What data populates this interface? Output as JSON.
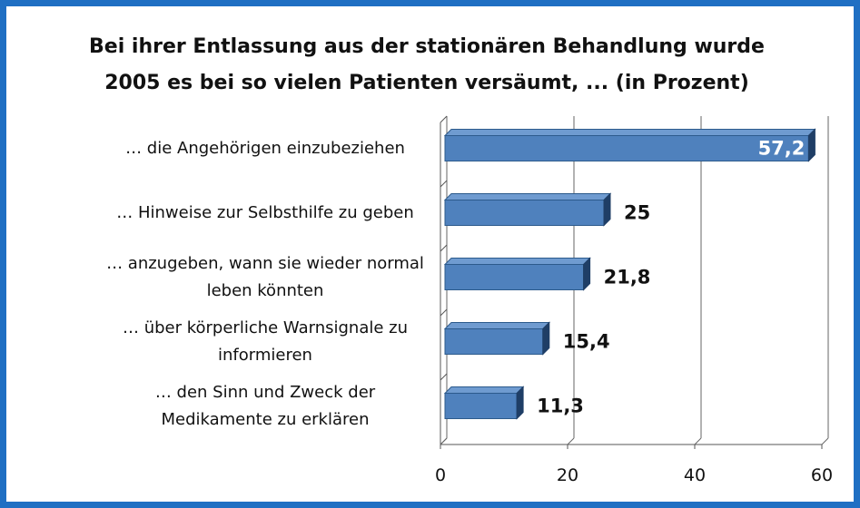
{
  "chart_data": {
    "type": "bar",
    "orientation": "horizontal",
    "title": "Bei ihrer Entlassung aus der stationären Behandlung wurde 2005 es bei so vielen Patienten versäumt, ... (in Prozent)",
    "categories": [
      "… die Angehörigen einzubeziehen",
      "… Hinweise zur Selbsthilfe zu geben",
      "… anzugeben, wann sie wieder normal leben könnten",
      "… über körperliche Warnsignale zu informieren",
      "… den Sinn und Zweck der Medikamente zu erklären"
    ],
    "values": [
      57.2,
      25,
      21.8,
      15.4,
      11.3
    ],
    "value_labels": [
      "57,2",
      "25",
      "21,8",
      "15,4",
      "11,3"
    ],
    "color": "#4f81bd",
    "xlim": [
      0,
      60
    ],
    "xticks": [
      0,
      20,
      40,
      60
    ],
    "grid": true
  }
}
